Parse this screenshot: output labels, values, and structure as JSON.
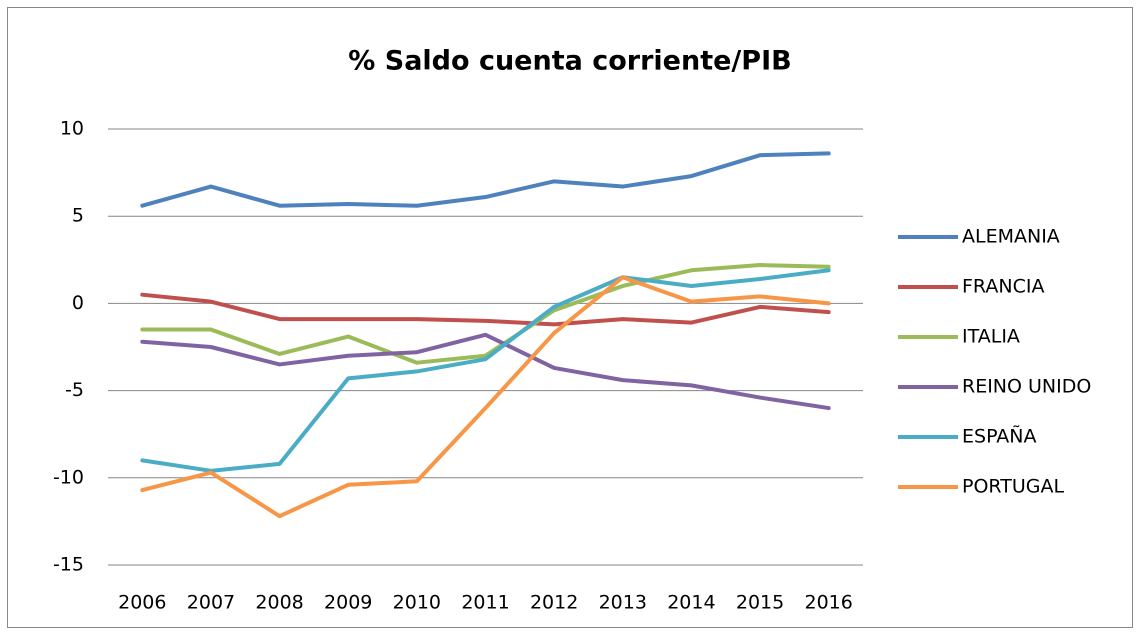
{
  "chart_data": {
    "type": "line",
    "title": "% Saldo cuenta corriente/PIB",
    "categories": [
      "2006",
      "2007",
      "2008",
      "2009",
      "2010",
      "2011",
      "2012",
      "2013",
      "2014",
      "2015",
      "2016"
    ],
    "series": [
      {
        "name": "ALEMANIA",
        "color": "#4f81bd",
        "values": [
          5.6,
          6.7,
          5.6,
          5.7,
          5.6,
          6.1,
          7.0,
          6.7,
          7.3,
          8.5,
          8.6
        ]
      },
      {
        "name": "FRANCIA",
        "color": "#c0504d",
        "values": [
          0.5,
          0.1,
          -0.9,
          -0.9,
          -0.9,
          -1.0,
          -1.2,
          -0.9,
          -1.1,
          -0.2,
          -0.5
        ]
      },
      {
        "name": "ITALIA",
        "color": "#9bbb59",
        "values": [
          -1.5,
          -1.5,
          -2.9,
          -1.9,
          -3.4,
          -3.0,
          -0.4,
          1.0,
          1.9,
          2.2,
          2.1
        ]
      },
      {
        "name": "REINO UNIDO",
        "color": "#8064a2",
        "values": [
          -2.2,
          -2.5,
          -3.5,
          -3.0,
          -2.8,
          -1.8,
          -3.7,
          -4.4,
          -4.7,
          -5.4,
          -6.0
        ]
      },
      {
        "name": "ESPAÑA",
        "color": "#4bacc6",
        "values": [
          -9.0,
          -9.6,
          -9.2,
          -4.3,
          -3.9,
          -3.2,
          -0.2,
          1.5,
          1.0,
          1.4,
          1.9
        ]
      },
      {
        "name": "PORTUGAL",
        "color": "#f79646",
        "values": [
          -10.7,
          -9.7,
          -12.2,
          -10.4,
          -10.2,
          -6.0,
          -1.7,
          1.5,
          0.1,
          0.4,
          0.0
        ]
      }
    ],
    "ylim": [
      -15,
      10
    ],
    "yticks": [
      -15,
      -10,
      -5,
      0,
      5,
      10
    ],
    "grid": true,
    "legend": "right"
  }
}
